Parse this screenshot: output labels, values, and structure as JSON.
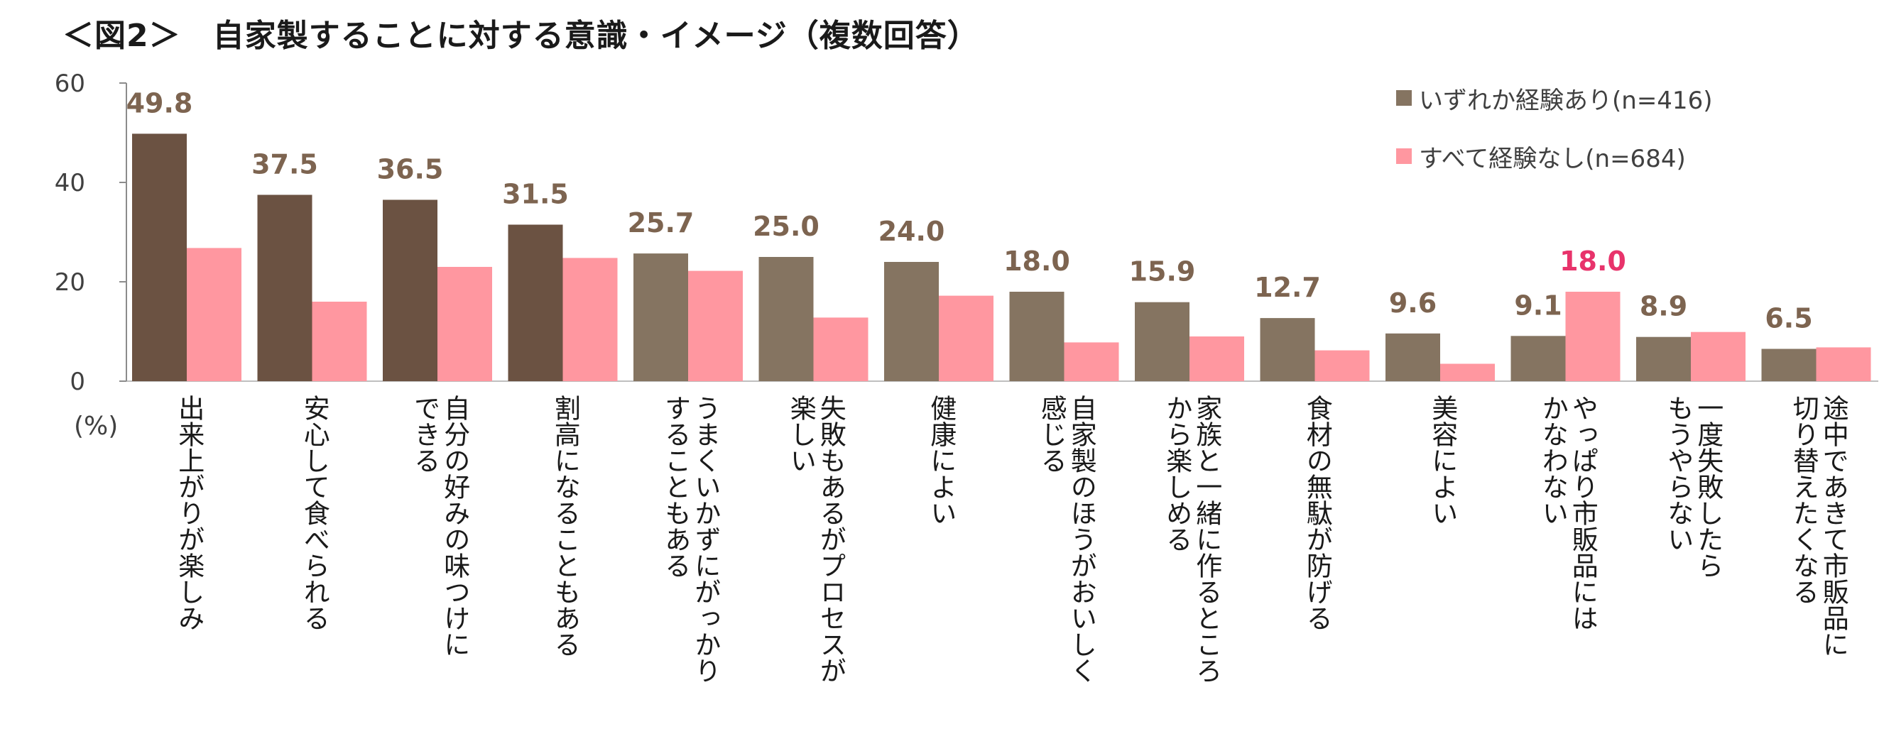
{
  "title": "＜図2＞　自家製することに対する意識・イメージ（複数回答）",
  "chart_data": {
    "type": "bar",
    "title": "＜図2＞　自家製することに対する意識・イメージ（複数回答）",
    "ylabel": "(%)",
    "ylim": [
      0,
      60
    ],
    "yticks": [
      0,
      20,
      40,
      60
    ],
    "categories": [
      "出来上がりが楽しみ",
      "安心して食べられる",
      "自分の好みの味つけにできる",
      "割高になることもある",
      "うまくいかずにがっかりすることもある",
      "失敗もあるがプロセスが楽しい",
      "健康によい",
      "自家製のほうがおいしく感じる",
      "家族と一緒に作るところから楽しめる",
      "食材の無駄が防げる",
      "美容によい",
      "やっぱり市販品にはかなわない",
      "一度失敗したらもうやらない",
      "途中であきて市販品に切り替えたくなる"
    ],
    "category_lines": [
      [
        "出来上がりが楽しみ"
      ],
      [
        "安心して食べられる"
      ],
      [
        "自分の好みの味つけに",
        "できる"
      ],
      [
        "割高になることもある"
      ],
      [
        "うまくいかずにがっかり",
        "することもある"
      ],
      [
        "失敗もあるがプロセスが",
        "楽しい"
      ],
      [
        "健康によい"
      ],
      [
        "自家製のほうがおいしく",
        "感じる"
      ],
      [
        "家族と一緒に作るところ",
        "から楽しめる"
      ],
      [
        "食材の無駄が防げる"
      ],
      [
        "美容によい"
      ],
      [
        "やっぱり市販品には",
        "かなわない"
      ],
      [
        "一度失敗したら",
        "もうやらない"
      ],
      [
        "途中であきて市販品に",
        "切り替えたくなる"
      ]
    ],
    "series": [
      {
        "name": "いずれか経験あり(n=416)",
        "values": [
          49.8,
          37.5,
          36.5,
          31.5,
          25.7,
          25.0,
          24.0,
          18.0,
          15.9,
          12.7,
          9.6,
          9.1,
          8.9,
          6.5
        ],
        "labels": [
          "49.8",
          "37.5",
          "36.5",
          "31.5",
          "25.7",
          "25.0",
          "24.0",
          "18.0",
          "15.9",
          "12.7",
          "9.6",
          "9.1",
          "8.9",
          "6.5"
        ],
        "colors": [
          "#6b5242",
          "#6b5242",
          "#6b5242",
          "#6b5242",
          "#857461",
          "#857461",
          "#857461",
          "#857461",
          "#857461",
          "#857461",
          "#857461",
          "#857461",
          "#857461",
          "#857461"
        ],
        "label_color": "#7d6450"
      },
      {
        "name": "すべて経験なし(n=684)",
        "values": [
          26.8,
          16.0,
          23.0,
          24.8,
          22.2,
          12.8,
          17.2,
          7.8,
          9.0,
          6.2,
          3.5,
          18.0,
          9.9,
          6.8
        ],
        "highlight_index": 11,
        "highlight_label": "18.0",
        "color": "#ff97a0",
        "highlight_color": "#e8336b"
      }
    ],
    "legend": [
      {
        "label": "いずれか経験あり(n=416)",
        "color": "#857461"
      },
      {
        "label": "すべて経験なし(n=684)",
        "color": "#ff97a0"
      }
    ]
  }
}
